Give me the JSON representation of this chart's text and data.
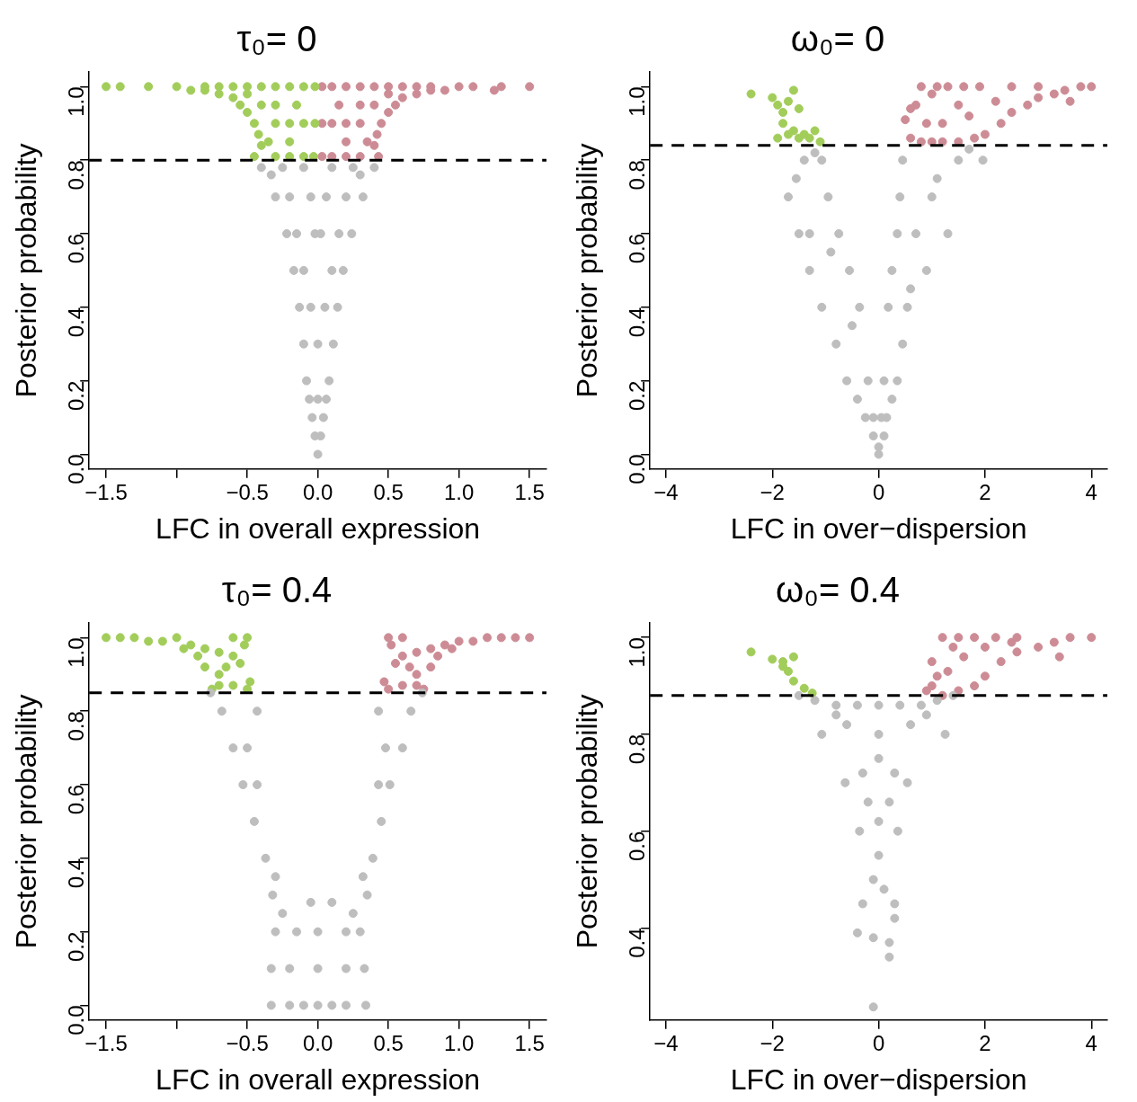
{
  "chart_data": [
    {
      "type": "scatter",
      "title": "τ₀= 0",
      "xlabel": "LFC in overall expression",
      "ylabel": "Posterior probability",
      "xlim": [
        -1.62,
        1.62
      ],
      "ylim": [
        -0.04,
        1.04
      ],
      "xticks": [
        {
          "value": -1.5,
          "label": "−1.5"
        },
        {
          "value": -1,
          "label": null
        },
        {
          "value": -0.5,
          "label": "−0.5"
        },
        {
          "value": 0,
          "label": "0.0"
        },
        {
          "value": 0.5,
          "label": "0.5"
        },
        {
          "value": 1,
          "label": "1.0"
        },
        {
          "value": 1.5,
          "label": "1.5"
        }
      ],
      "yticks": [
        {
          "value": 0,
          "label": "0.0"
        },
        {
          "value": 0.2,
          "label": "0.2"
        },
        {
          "value": 0.4,
          "label": "0.4"
        },
        {
          "value": 0.6,
          "label": "0.6"
        },
        {
          "value": 0.8,
          "label": "0.8"
        },
        {
          "value": 1,
          "label": "1.0"
        }
      ],
      "marker": "circle",
      "grid": false,
      "legend": false,
      "ref_lines": [
        {
          "axis": "y",
          "value": 0.8,
          "color": "#000000",
          "line_style": "dashed"
        }
      ],
      "series": [
        {
          "color": "#bebebe",
          "x": [
            0,
            -0.02,
            0.02,
            -0.04,
            0.04,
            -0.06,
            0.06,
            -0.08,
            0.08,
            -0.1,
            0.11,
            -0.13,
            0.14,
            -0.17,
            0.18,
            -0.22,
            0.24,
            -0.3,
            0.32,
            -0.4,
            0.4,
            -0.02,
            0.02,
            -0.05,
            0.06,
            -0.1,
            0.1,
            0,
            -0.05,
            0.05,
            -0.1,
            0.1,
            -0.15,
            0.15,
            -0.2,
            0.2,
            -0.25,
            0.25,
            0,
            0.3,
            -0.33
          ],
          "values": [
            0,
            0.05,
            0.05,
            0.1,
            0.1,
            0.15,
            0.15,
            0.2,
            0.2,
            0.3,
            0.3,
            0.4,
            0.4,
            0.5,
            0.5,
            0.6,
            0.6,
            0.7,
            0.7,
            0.78,
            0.78,
            0.6,
            0.6,
            0.7,
            0.7,
            0.78,
            0.78,
            0.3,
            0.4,
            0.4,
            0.5,
            0.5,
            0.6,
            0.6,
            0.7,
            0.7,
            0.78,
            0.78,
            0.15,
            0.76,
            0.76
          ]
        },
        {
          "color": "#a2cd5a",
          "x": [
            -1.5,
            -1.4,
            -1.2,
            -1,
            -0.9,
            -0.8,
            -0.7,
            -0.6,
            -0.55,
            -0.5,
            -0.45,
            -0.42,
            -0.4,
            -0.45,
            -0.3,
            -0.2,
            -0.1,
            -0.03,
            -0.02,
            -0.02,
            -0.1,
            -0.2,
            -0.3,
            -0.1,
            -0.2,
            -0.3,
            -0.4,
            -0.5,
            -0.6,
            -0.7,
            -0.8,
            -0.3,
            -0.4,
            -0.2,
            -0.35,
            -0.5,
            -0.15
          ],
          "values": [
            1,
            1,
            1,
            1,
            0.99,
            0.99,
            0.98,
            0.97,
            0.95,
            0.93,
            0.9,
            0.87,
            0.84,
            0.81,
            0.81,
            0.81,
            0.81,
            0.81,
            0.9,
            1,
            0.9,
            0.9,
            0.9,
            1,
            1,
            1,
            1,
            1,
            1,
            1,
            1,
            0.95,
            0.95,
            0.85,
            0.85,
            0.98,
            0.95
          ]
        },
        {
          "color": "#cd8c95",
          "x": [
            1.5,
            1.3,
            1.25,
            1.1,
            1,
            0.9,
            0.8,
            0.7,
            0.6,
            0.55,
            0.5,
            0.45,
            0.42,
            0.4,
            0.43,
            0.3,
            0.2,
            0.1,
            0.03,
            0.03,
            0.03,
            0.1,
            0.2,
            0.3,
            0.1,
            0.2,
            0.3,
            0.4,
            0.5,
            0.6,
            0.7,
            0.8,
            0.3,
            0.4,
            0.2,
            0.35,
            0.5,
            0.15
          ],
          "values": [
            1,
            1,
            0.99,
            1,
            1,
            0.99,
            0.99,
            0.98,
            0.97,
            0.95,
            0.93,
            0.9,
            0.87,
            0.84,
            0.81,
            0.81,
            0.81,
            0.81,
            0.81,
            0.9,
            1,
            0.9,
            0.9,
            0.9,
            1,
            1,
            1,
            1,
            1,
            1,
            1,
            1,
            0.95,
            0.95,
            0.85,
            0.85,
            0.98,
            0.95
          ]
        }
      ]
    },
    {
      "type": "scatter",
      "title": "ω₀= 0",
      "xlabel": "LFC in over−dispersion",
      "ylabel": "Posterior probability",
      "xlim": [
        -4.3,
        4.3
      ],
      "ylim": [
        -0.04,
        1.04
      ],
      "xticks": [
        {
          "value": -4,
          "label": "−4"
        },
        {
          "value": -2,
          "label": "−2"
        },
        {
          "value": 0,
          "label": "0"
        },
        {
          "value": 2,
          "label": "2"
        },
        {
          "value": 4,
          "label": "4"
        }
      ],
      "yticks": [
        {
          "value": 0,
          "label": "0.0"
        },
        {
          "value": 0.2,
          "label": "0.2"
        },
        {
          "value": 0.4,
          "label": "0.4"
        },
        {
          "value": 0.6,
          "label": "0.6"
        },
        {
          "value": 0.8,
          "label": "0.8"
        },
        {
          "value": 1,
          "label": "1.0"
        }
      ],
      "marker": "circle",
      "grid": false,
      "legend": false,
      "ref_lines": [
        {
          "axis": "y",
          "value": 0.84,
          "color": "#000000",
          "line_style": "dashed"
        }
      ],
      "series": [
        {
          "color": "#bebebe",
          "x": [
            0,
            -0.1,
            0.1,
            -0.25,
            0.15,
            -0.4,
            0.25,
            -0.6,
            0.35,
            -0.8,
            0.45,
            -1.07,
            0.54,
            -1.3,
            0.9,
            -1.5,
            1.3,
            -1.7,
            1.96,
            -1.07,
            0.45,
            -0.1,
            0.05,
            -0.2,
            0.1,
            -0.36,
            0.18,
            -0.55,
            0.25,
            -0.75,
            0.35,
            -0.95,
            0.4,
            -1.2,
            1.5,
            -1.4,
            1.0,
            -1.3,
            0.7,
            0,
            -0.5,
            0.6,
            -0.9,
            1.1,
            1.7,
            -1.55
          ],
          "values": [
            0,
            0.05,
            0.05,
            0.1,
            0.1,
            0.15,
            0.15,
            0.2,
            0.2,
            0.3,
            0.3,
            0.4,
            0.4,
            0.5,
            0.5,
            0.6,
            0.6,
            0.7,
            0.8,
            0.8,
            0.8,
            0.1,
            0.1,
            0.2,
            0.2,
            0.4,
            0.4,
            0.5,
            0.5,
            0.6,
            0.6,
            0.7,
            0.7,
            0.82,
            0.8,
            0.8,
            0.7,
            0.6,
            0.6,
            0.02,
            0.35,
            0.45,
            0.55,
            0.75,
            0.83,
            0.75
          ]
        },
        {
          "color": "#a2cd5a",
          "x": [
            -2.4,
            -2,
            -1.9,
            -1.8,
            -1.7,
            -1.6,
            -1.5,
            -1.8,
            -1.6,
            -1.4,
            -1.3,
            -1.1,
            -1.9,
            -1.5,
            -1.7,
            -1.2
          ],
          "values": [
            0.98,
            0.97,
            0.95,
            0.93,
            0.96,
            0.99,
            0.94,
            0.9,
            0.88,
            0.87,
            0.86,
            0.85,
            0.86,
            0.86,
            0.87,
            0.88
          ]
        },
        {
          "color": "#cd8c95",
          "x": [
            0.5,
            0.6,
            0.8,
            1,
            1.2,
            1.5,
            1.8,
            2,
            2.3,
            2.5,
            2.8,
            3,
            3.3,
            3.5,
            3.8,
            4,
            0.7,
            1,
            1.3,
            1.6,
            1.9,
            0.6,
            0.8,
            1.1,
            1.5,
            2.5,
            3,
            1.2,
            1.7,
            2.2,
            0.9,
            3.6
          ],
          "values": [
            0.91,
            0.86,
            0.85,
            0.85,
            0.85,
            0.85,
            0.86,
            0.87,
            0.9,
            0.93,
            0.95,
            0.97,
            0.98,
            0.99,
            1,
            1,
            0.95,
            0.98,
            1,
            1,
            1,
            0.94,
            1,
            1,
            0.95,
            1,
            1,
            0.9,
            0.92,
            0.96,
            0.9,
            0.96
          ]
        }
      ]
    },
    {
      "type": "scatter",
      "title": "τ₀= 0.4",
      "xlabel": "LFC in overall expression",
      "ylabel": "Posterior probability",
      "xlim": [
        -1.62,
        1.62
      ],
      "ylim": [
        -0.04,
        1.04
      ],
      "xticks": [
        {
          "value": -1.5,
          "label": "−1.5"
        },
        {
          "value": -1,
          "label": null
        },
        {
          "value": -0.5,
          "label": "−0.5"
        },
        {
          "value": 0,
          "label": "0.0"
        },
        {
          "value": 0.5,
          "label": "0.5"
        },
        {
          "value": 1,
          "label": "1.0"
        },
        {
          "value": 1.5,
          "label": "1.5"
        }
      ],
      "yticks": [
        {
          "value": 0,
          "label": "0.0"
        },
        {
          "value": 0.2,
          "label": "0.2"
        },
        {
          "value": 0.4,
          "label": "0.4"
        },
        {
          "value": 0.6,
          "label": "0.6"
        },
        {
          "value": 0.8,
          "label": "0.8"
        },
        {
          "value": 1,
          "label": "1.0"
        }
      ],
      "marker": "circle",
      "grid": false,
      "legend": false,
      "ref_lines": [
        {
          "axis": "y",
          "value": 0.85,
          "color": "#000000",
          "line_style": "dashed"
        }
      ],
      "series": [
        {
          "color": "#bebebe",
          "x": [
            -0.33,
            -0.2,
            -0.1,
            0,
            0.1,
            0.2,
            0.34,
            -0.33,
            -0.2,
            0,
            0.2,
            0.33,
            -0.3,
            -0.15,
            0,
            0.2,
            0.3,
            -0.05,
            0.1,
            -0.37,
            0.39,
            -0.3,
            0.32,
            -0.45,
            0.45,
            -0.53,
            0.51,
            -0.43,
            0.43,
            -0.6,
            0.6,
            -0.5,
            0.48,
            -0.76,
            0.74,
            -0.43,
            0.43,
            -0.68,
            0.66,
            -0.25,
            0.25,
            -0.32,
            0.35
          ],
          "values": [
            0,
            0,
            0,
            0,
            0,
            0,
            0,
            0.1,
            0.1,
            0.1,
            0.1,
            0.1,
            0.2,
            0.2,
            0.2,
            0.2,
            0.2,
            0.28,
            0.28,
            0.4,
            0.4,
            0.35,
            0.35,
            0.5,
            0.5,
            0.6,
            0.6,
            0.6,
            0.6,
            0.7,
            0.7,
            0.7,
            0.7,
            0.85,
            0.85,
            0.8,
            0.8,
            0.8,
            0.8,
            0.25,
            0.25,
            0.3,
            0.3
          ]
        },
        {
          "color": "#a2cd5a",
          "x": [
            -1.5,
            -1.4,
            -1.3,
            -1.2,
            -1.1,
            -1,
            -0.9,
            -0.8,
            -0.7,
            -0.6,
            -0.5,
            -0.48,
            -0.5,
            -0.6,
            -0.7,
            -0.75,
            -0.55,
            -0.65,
            -0.85,
            -0.95,
            -0.8,
            -0.7,
            -0.6,
            -0.52
          ],
          "values": [
            1,
            1,
            1,
            0.99,
            0.99,
            1,
            0.98,
            0.97,
            0.96,
            1,
            1,
            0.88,
            0.86,
            0.87,
            0.87,
            0.86,
            0.93,
            0.92,
            0.95,
            0.97,
            0.92,
            0.9,
            0.95,
            0.98
          ]
        },
        {
          "color": "#cd8c95",
          "x": [
            1.5,
            1.4,
            1.3,
            1.2,
            1.1,
            1,
            0.9,
            0.8,
            0.7,
            0.6,
            0.5,
            0.47,
            0.5,
            0.6,
            0.7,
            0.75,
            0.55,
            0.65,
            0.85,
            0.95,
            0.8,
            0.7,
            0.6,
            0.52
          ],
          "values": [
            1,
            1,
            1,
            1,
            0.99,
            0.99,
            0.98,
            0.97,
            0.96,
            1,
            1,
            0.88,
            0.86,
            0.87,
            0.87,
            0.86,
            0.93,
            0.92,
            0.95,
            0.97,
            0.92,
            0.9,
            0.95,
            0.98
          ]
        }
      ]
    },
    {
      "type": "scatter",
      "title": "ω₀= 0.4",
      "xlabel": "LFC in over−dispersion",
      "ylabel": "Posterior probability",
      "xlim": [
        -4.3,
        4.3
      ],
      "ylim": [
        0.21,
        1.03
      ],
      "xticks": [
        {
          "value": -4,
          "label": "−4"
        },
        {
          "value": -2,
          "label": "−2"
        },
        {
          "value": 0,
          "label": "0"
        },
        {
          "value": 2,
          "label": "2"
        },
        {
          "value": 4,
          "label": "4"
        }
      ],
      "yticks": [
        {
          "value": 0.4,
          "label": "0.4"
        },
        {
          "value": 0.6,
          "label": "0.6"
        },
        {
          "value": 0.8,
          "label": "0.8"
        },
        {
          "value": 1,
          "label": "1.0"
        }
      ],
      "marker": "circle",
      "grid": false,
      "legend": false,
      "ref_lines": [
        {
          "axis": "y",
          "value": 0.88,
          "color": "#000000",
          "line_style": "dashed"
        }
      ],
      "series": [
        {
          "color": "#bebebe",
          "x": [
            -1.5,
            -1.2,
            -0.8,
            -0.4,
            0,
            0.4,
            0.8,
            1.1,
            1.4,
            -1.07,
            -0.6,
            0,
            0.6,
            1.25,
            -0.63,
            -0.3,
            0,
            0.3,
            0.54,
            -0.36,
            0,
            0.36,
            0,
            -0.1,
            0.1,
            0.3,
            -0.3,
            0.3,
            -0.1,
            0.2,
            -0.4,
            0.2,
            -0.1,
            -0.8,
            0.9,
            -0.2,
            0.2
          ],
          "values": [
            0.88,
            0.87,
            0.86,
            0.86,
            0.86,
            0.86,
            0.86,
            0.87,
            0.88,
            0.8,
            0.82,
            0.8,
            0.82,
            0.8,
            0.7,
            0.72,
            0.75,
            0.72,
            0.7,
            0.6,
            0.62,
            0.6,
            0.55,
            0.5,
            0.48,
            0.45,
            0.45,
            0.42,
            0.38,
            0.37,
            0.39,
            0.34,
            0.237,
            0.84,
            0.84,
            0.66,
            0.66
          ]
        },
        {
          "color": "#a2cd5a",
          "x": [
            -2.4,
            -2,
            -1.8,
            -1.6,
            -1.7,
            -1.6,
            -1.4,
            -1.25,
            -1.8
          ],
          "values": [
            0.97,
            0.955,
            0.95,
            0.96,
            0.93,
            0.91,
            0.895,
            0.885,
            0.94
          ]
        },
        {
          "color": "#cd8c95",
          "x": [
            0.9,
            1,
            1.2,
            1.5,
            1.8,
            2,
            2.3,
            2.6,
            3,
            3.3,
            3.6,
            4,
            1,
            1.2,
            1.5,
            1.8,
            2.2,
            1.3,
            1.6,
            2,
            2.6,
            3.4,
            1.1,
            1.4,
            2.5
          ],
          "values": [
            0.89,
            0.9,
            0.88,
            0.89,
            0.9,
            0.92,
            0.95,
            0.97,
            0.98,
            0.99,
            1,
            1,
            0.95,
            1,
            1,
            1,
            1,
            0.93,
            0.96,
            0.98,
            1,
            0.96,
            0.92,
            0.98,
            0.99
          ]
        }
      ]
    }
  ]
}
